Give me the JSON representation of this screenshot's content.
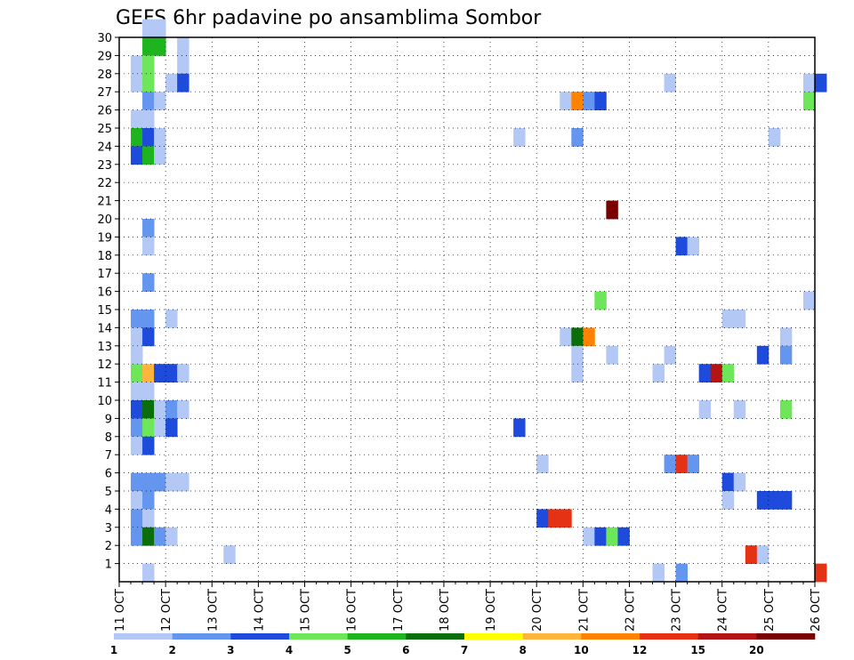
{
  "chart_data": {
    "type": "heatmap",
    "title": "GEFS 6hr padavine po ansamblima Sombor",
    "xlabel": "",
    "ylabel": "",
    "x_ticks": [
      "11 OCT",
      "12 OCT",
      "13 OCT",
      "14 OCT",
      "15 OCT",
      "16 OCT",
      "17 OCT",
      "18 OCT",
      "19 OCT",
      "20 OCT",
      "21 OCT",
      "22 OCT",
      "23 OCT",
      "24 OCT",
      "25 OCT",
      "26 OCT"
    ],
    "y_ticks": [
      "1",
      "2",
      "3",
      "4",
      "5",
      "6",
      "7",
      "8",
      "9",
      "10",
      "11",
      "12",
      "13",
      "14",
      "15",
      "16",
      "17",
      "18",
      "19",
      "20",
      "21",
      "22",
      "23",
      "24",
      "25",
      "26",
      "27",
      "28",
      "29",
      "30"
    ],
    "xlim": [
      "11 OCT 00Z",
      "26 OCT 00Z"
    ],
    "ylim": [
      0,
      30
    ],
    "time_step_hours": 6,
    "grid": "dotted",
    "colorbar": {
      "labels": [
        "1",
        "2",
        "3",
        "4",
        "5",
        "6",
        "7",
        "8",
        "10",
        "12",
        "15",
        "20"
      ],
      "colors": [
        "#b4c8f5",
        "#6496f0",
        "#1e4bdc",
        "#6ee65a",
        "#1eb41e",
        "#0a6e0a",
        "#ffff00",
        "#ffb43c",
        "#ff8200",
        "#e63214",
        "#b41414",
        "#7a0000"
      ]
    },
    "cells": [
      {
        "member": 30,
        "step": 2,
        "cls": 1
      },
      {
        "member": 30,
        "step": 3,
        "cls": 1
      },
      {
        "member": 29,
        "step": 2,
        "cls": 5
      },
      {
        "member": 29,
        "step": 3,
        "cls": 5
      },
      {
        "member": 29,
        "step": 5,
        "cls": 1
      },
      {
        "member": 28,
        "step": 1,
        "cls": 1
      },
      {
        "member": 28,
        "step": 2,
        "cls": 4
      },
      {
        "member": 28,
        "step": 5,
        "cls": 1
      },
      {
        "member": 27,
        "step": 1,
        "cls": 1
      },
      {
        "member": 27,
        "step": 2,
        "cls": 4
      },
      {
        "member": 27,
        "step": 4,
        "cls": 1
      },
      {
        "member": 27,
        "step": 5,
        "cls": 3
      },
      {
        "member": 27,
        "step": 47,
        "cls": 1
      },
      {
        "member": 27,
        "step": 59,
        "cls": 1
      },
      {
        "member": 27,
        "step": 60,
        "cls": 3
      },
      {
        "member": 26,
        "step": 2,
        "cls": 2
      },
      {
        "member": 26,
        "step": 3,
        "cls": 1
      },
      {
        "member": 26,
        "step": 38,
        "cls": 1
      },
      {
        "member": 26,
        "step": 39,
        "cls": 9
      },
      {
        "member": 26,
        "step": 40,
        "cls": 2
      },
      {
        "member": 26,
        "step": 41,
        "cls": 3
      },
      {
        "member": 26,
        "step": 59,
        "cls": 4
      },
      {
        "member": 25,
        "step": 1,
        "cls": 1
      },
      {
        "member": 25,
        "step": 2,
        "cls": 1
      },
      {
        "member": 24,
        "step": 1,
        "cls": 5
      },
      {
        "member": 24,
        "step": 2,
        "cls": 3
      },
      {
        "member": 24,
        "step": 3,
        "cls": 1
      },
      {
        "member": 24,
        "step": 34,
        "cls": 1
      },
      {
        "member": 24,
        "step": 39,
        "cls": 2
      },
      {
        "member": 24,
        "step": 56,
        "cls": 1
      },
      {
        "member": 23,
        "step": 1,
        "cls": 3
      },
      {
        "member": 23,
        "step": 2,
        "cls": 5
      },
      {
        "member": 23,
        "step": 3,
        "cls": 1
      },
      {
        "member": 20,
        "step": 42,
        "cls": 12
      },
      {
        "member": 19,
        "step": 2,
        "cls": 2
      },
      {
        "member": 18,
        "step": 2,
        "cls": 1
      },
      {
        "member": 18,
        "step": 48,
        "cls": 3
      },
      {
        "member": 18,
        "step": 49,
        "cls": 1
      },
      {
        "member": 16,
        "step": 2,
        "cls": 2
      },
      {
        "member": 15,
        "step": 41,
        "cls": 4
      },
      {
        "member": 15,
        "step": 59,
        "cls": 1
      },
      {
        "member": 14,
        "step": 1,
        "cls": 2
      },
      {
        "member": 14,
        "step": 2,
        "cls": 2
      },
      {
        "member": 14,
        "step": 4,
        "cls": 1
      },
      {
        "member": 14,
        "step": 52,
        "cls": 1
      },
      {
        "member": 14,
        "step": 53,
        "cls": 1
      },
      {
        "member": 13,
        "step": 1,
        "cls": 1
      },
      {
        "member": 13,
        "step": 2,
        "cls": 3
      },
      {
        "member": 13,
        "step": 38,
        "cls": 1
      },
      {
        "member": 13,
        "step": 39,
        "cls": 6
      },
      {
        "member": 13,
        "step": 40,
        "cls": 9
      },
      {
        "member": 13,
        "step": 57,
        "cls": 1
      },
      {
        "member": 12,
        "step": 1,
        "cls": 1
      },
      {
        "member": 12,
        "step": 39,
        "cls": 1
      },
      {
        "member": 12,
        "step": 42,
        "cls": 1
      },
      {
        "member": 12,
        "step": 47,
        "cls": 1
      },
      {
        "member": 12,
        "step": 55,
        "cls": 3
      },
      {
        "member": 12,
        "step": 57,
        "cls": 2
      },
      {
        "member": 11,
        "step": 1,
        "cls": 4
      },
      {
        "member": 11,
        "step": 2,
        "cls": 8
      },
      {
        "member": 11,
        "step": 3,
        "cls": 3
      },
      {
        "member": 11,
        "step": 4,
        "cls": 3
      },
      {
        "member": 11,
        "step": 5,
        "cls": 1
      },
      {
        "member": 11,
        "step": 39,
        "cls": 1
      },
      {
        "member": 11,
        "step": 46,
        "cls": 1
      },
      {
        "member": 11,
        "step": 50,
        "cls": 3
      },
      {
        "member": 11,
        "step": 51,
        "cls": 11
      },
      {
        "member": 11,
        "step": 52,
        "cls": 4
      },
      {
        "member": 10,
        "step": 1,
        "cls": 1
      },
      {
        "member": 10,
        "step": 2,
        "cls": 1
      },
      {
        "member": 9,
        "step": 1,
        "cls": 3
      },
      {
        "member": 9,
        "step": 2,
        "cls": 6
      },
      {
        "member": 9,
        "step": 3,
        "cls": 1
      },
      {
        "member": 9,
        "step": 4,
        "cls": 2
      },
      {
        "member": 9,
        "step": 5,
        "cls": 1
      },
      {
        "member": 9,
        "step": 50,
        "cls": 1
      },
      {
        "member": 9,
        "step": 53,
        "cls": 1
      },
      {
        "member": 9,
        "step": 57,
        "cls": 4
      },
      {
        "member": 8,
        "step": 1,
        "cls": 2
      },
      {
        "member": 8,
        "step": 2,
        "cls": 4
      },
      {
        "member": 8,
        "step": 3,
        "cls": 1
      },
      {
        "member": 8,
        "step": 4,
        "cls": 3
      },
      {
        "member": 8,
        "step": 34,
        "cls": 3
      },
      {
        "member": 7,
        "step": 1,
        "cls": 1
      },
      {
        "member": 7,
        "step": 2,
        "cls": 3
      },
      {
        "member": 6,
        "step": 36,
        "cls": 1
      },
      {
        "member": 6,
        "step": 47,
        "cls": 2
      },
      {
        "member": 6,
        "step": 48,
        "cls": 10
      },
      {
        "member": 6,
        "step": 49,
        "cls": 2
      },
      {
        "member": 5,
        "step": 1,
        "cls": 2
      },
      {
        "member": 5,
        "step": 2,
        "cls": 2
      },
      {
        "member": 5,
        "step": 3,
        "cls": 2
      },
      {
        "member": 5,
        "step": 4,
        "cls": 1
      },
      {
        "member": 5,
        "step": 5,
        "cls": 1
      },
      {
        "member": 5,
        "step": 52,
        "cls": 3
      },
      {
        "member": 5,
        "step": 53,
        "cls": 1
      },
      {
        "member": 4,
        "step": 1,
        "cls": 1
      },
      {
        "member": 4,
        "step": 2,
        "cls": 2
      },
      {
        "member": 4,
        "step": 52,
        "cls": 1
      },
      {
        "member": 4,
        "step": 55,
        "cls": 3
      },
      {
        "member": 4,
        "step": 56,
        "cls": 3
      },
      {
        "member": 4,
        "step": 57,
        "cls": 3
      },
      {
        "member": 3,
        "step": 1,
        "cls": 2
      },
      {
        "member": 3,
        "step": 2,
        "cls": 1
      },
      {
        "member": 3,
        "step": 36,
        "cls": 3
      },
      {
        "member": 3,
        "step": 37,
        "cls": 10
      },
      {
        "member": 3,
        "step": 38,
        "cls": 10
      },
      {
        "member": 2,
        "step": 1,
        "cls": 2
      },
      {
        "member": 2,
        "step": 2,
        "cls": 6
      },
      {
        "member": 2,
        "step": 3,
        "cls": 2
      },
      {
        "member": 2,
        "step": 4,
        "cls": 1
      },
      {
        "member": 2,
        "step": 40,
        "cls": 1
      },
      {
        "member": 2,
        "step": 41,
        "cls": 3
      },
      {
        "member": 2,
        "step": 42,
        "cls": 4
      },
      {
        "member": 2,
        "step": 43,
        "cls": 3
      },
      {
        "member": 1,
        "step": 9,
        "cls": 1
      },
      {
        "member": 1,
        "step": 54,
        "cls": 10
      },
      {
        "member": 1,
        "step": 55,
        "cls": 1
      },
      {
        "member": 0,
        "step": 2,
        "cls": 1
      },
      {
        "member": 0,
        "step": 46,
        "cls": 1
      },
      {
        "member": 0,
        "step": 48,
        "cls": 2
      },
      {
        "member": 0,
        "step": 60,
        "cls": 10
      }
    ]
  }
}
